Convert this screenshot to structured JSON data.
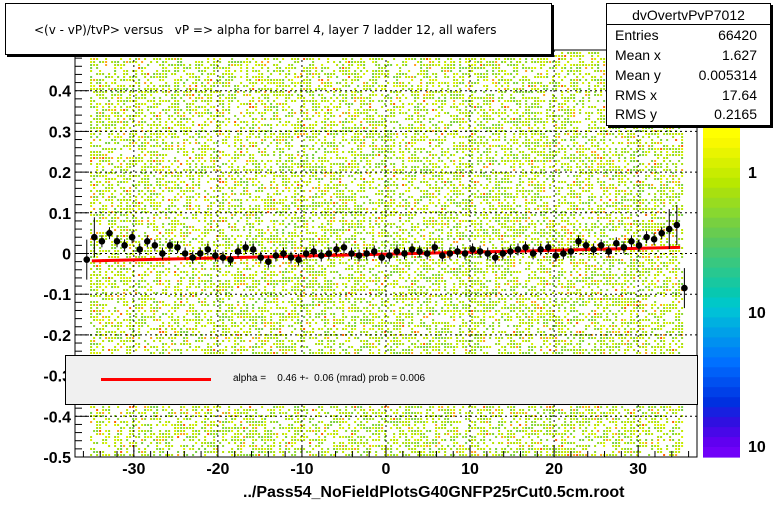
{
  "chart_data": {
    "type": "scatter",
    "title": "<(v - vP)/tvP> versus   vP => alpha for barrel 4, layer 7 ladder 12, all wafers",
    "xlabel": "",
    "ylabel": "",
    "xlim": [
      -37,
      37
    ],
    "ylim": [
      -0.5,
      0.5
    ],
    "x_ticks": [
      "-30",
      "-20",
      "-10",
      "0",
      "10",
      "20",
      "30"
    ],
    "x_tick_values": [
      -30,
      -20,
      -10,
      0,
      10,
      20,
      30
    ],
    "y_ticks": [
      "-0.5",
      "-0.4",
      "-0.3",
      "-0.2",
      "-0.1",
      "0",
      "0.1",
      "0.2",
      "0.3",
      "0.4"
    ],
    "y_tick_values": [
      -0.5,
      -0.4,
      -0.3,
      -0.2,
      -0.1,
      0,
      0.1,
      0.2,
      0.3,
      0.4
    ],
    "z_ticks": [
      "1",
      "10",
      "10"
    ],
    "grid": true,
    "profile_points": {
      "x": [
        -35.6,
        -34.7,
        -33.8,
        -32.9,
        -32.0,
        -31.1,
        -30.2,
        -29.3,
        -28.4,
        -27.5,
        -26.6,
        -25.7,
        -24.8,
        -23.9,
        -23.0,
        -22.1,
        -21.2,
        -20.3,
        -19.4,
        -18.5,
        -17.6,
        -16.7,
        -15.8,
        -14.9,
        -14.0,
        -13.1,
        -12.2,
        -11.3,
        -10.4,
        -9.5,
        -8.6,
        -7.7,
        -6.8,
        -5.9,
        -5.0,
        -4.1,
        -3.2,
        -2.3,
        -1.4,
        -0.5,
        0.4,
        1.3,
        2.2,
        3.1,
        4.0,
        4.9,
        5.8,
        6.7,
        7.6,
        8.5,
        9.4,
        10.3,
        11.2,
        12.1,
        13.0,
        13.9,
        14.8,
        15.7,
        16.6,
        17.5,
        18.4,
        19.3,
        20.2,
        21.1,
        22.0,
        22.9,
        23.8,
        24.7,
        25.6,
        26.5,
        27.4,
        28.3,
        29.2,
        30.1,
        31.0,
        31.9,
        32.8,
        33.7,
        34.6,
        35.5
      ],
      "y": [
        -0.015,
        0.04,
        0.03,
        0.05,
        0.03,
        0.02,
        0.04,
        0.01,
        0.03,
        0.02,
        0.0,
        0.02,
        0.015,
        0.0,
        -0.01,
        0.0,
        0.01,
        -0.005,
        -0.01,
        -0.015,
        0.005,
        0.015,
        0.01,
        -0.01,
        -0.02,
        -0.005,
        0.0,
        -0.01,
        -0.015,
        0.0,
        0.005,
        -0.005,
        0.0,
        0.01,
        0.015,
        0.0,
        -0.005,
        0.0,
        0.005,
        -0.01,
        -0.005,
        0.005,
        0.0,
        0.01,
        0.005,
        0.0,
        0.015,
        -0.005,
        0.0,
        0.005,
        0.0,
        0.01,
        0.005,
        0.0,
        -0.01,
        0.0,
        0.005,
        0.01,
        0.015,
        0.0,
        0.01,
        0.015,
        -0.005,
        0.0,
        0.005,
        0.03,
        0.02,
        0.01,
        0.02,
        0.005,
        0.025,
        0.015,
        0.03,
        0.02,
        0.04,
        0.035,
        0.05,
        0.06,
        0.07,
        -0.085
      ]
    },
    "fit_line": {
      "x": [
        -35,
        35
      ],
      "y": [
        -0.018,
        0.015
      ]
    },
    "stats": {
      "name": "dvOvertvPvP7012",
      "rows": [
        {
          "label": "Entries",
          "value": "66420"
        },
        {
          "label": "Mean x",
          "value": "1.627"
        },
        {
          "label": "Mean y",
          "value": "0.005314"
        },
        {
          "label": "RMS x",
          "value": "17.64"
        },
        {
          "label": "RMS y",
          "value": "0.2165"
        }
      ]
    },
    "fit_label": "alpha =    0.46 +-  0.06 (mrad) prob = 0.006",
    "footer": "../Pass54_NoFieldPlotsG40GNFP25rCut0.5cm.root"
  },
  "colors": {
    "fit_line": "#ff0000",
    "points": "#000000",
    "density_main": "#a8e010",
    "density_high": "#ffa020",
    "density_low": "#d8f000"
  }
}
